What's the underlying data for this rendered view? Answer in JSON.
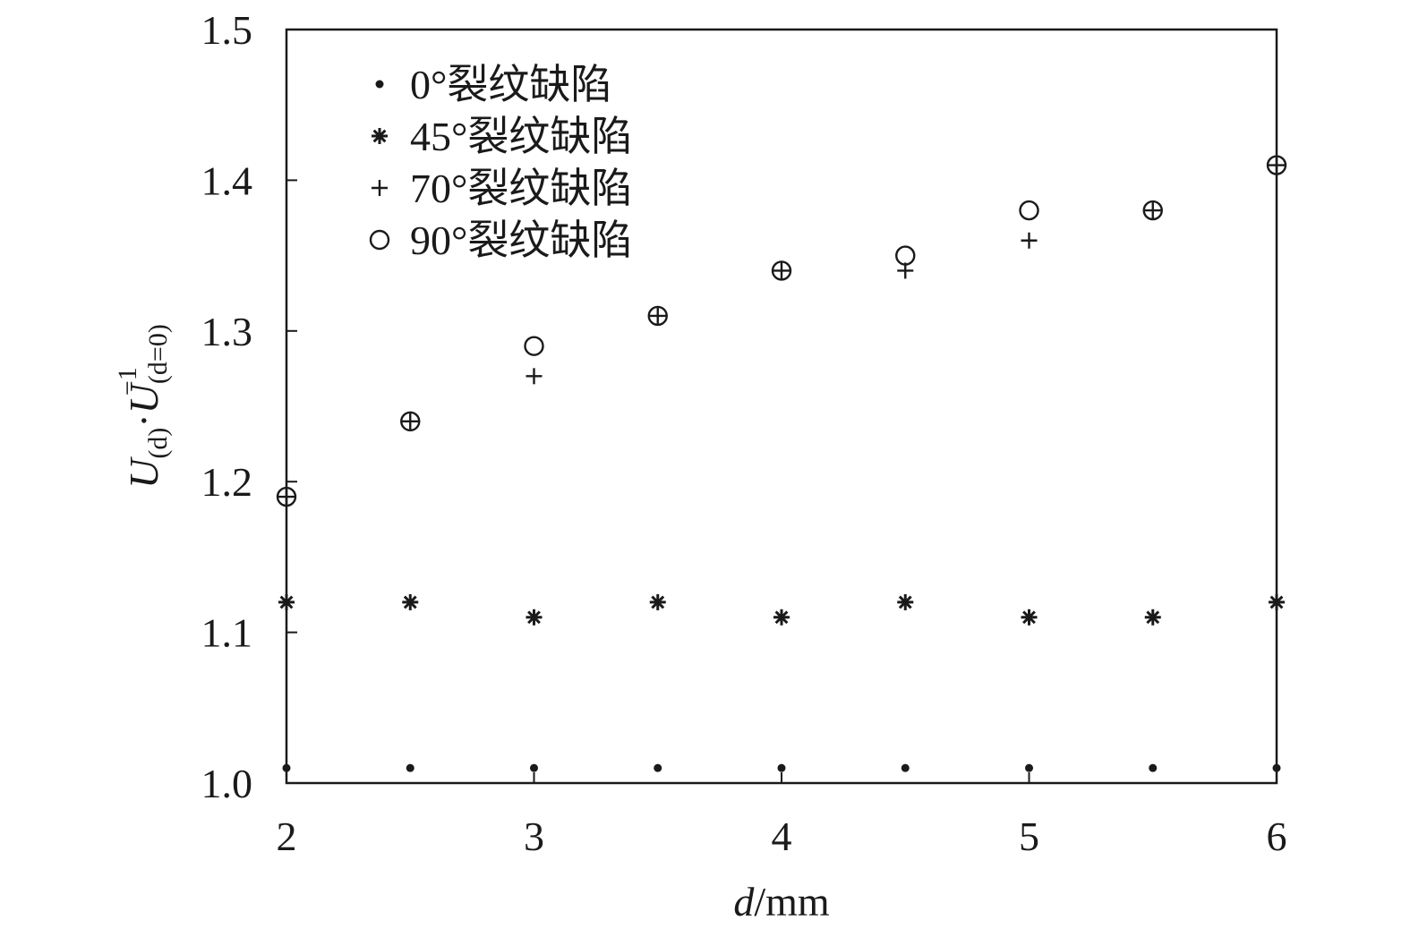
{
  "chart_data": {
    "type": "scatter",
    "xlabel": {
      "var": "d",
      "unit": "/mm"
    },
    "ylabel": {
      "u1": "U",
      "sub1": "(d)",
      "dot": "·",
      "u2": "U",
      "sup2": "−1",
      "sub2": "(d=0)"
    },
    "xlim": [
      2,
      6
    ],
    "ylim": [
      1.0,
      1.5
    ],
    "xticks": [
      "2",
      "3",
      "4",
      "5",
      "6"
    ],
    "yticks": [
      "1.0",
      "1.1",
      "1.2",
      "1.3",
      "1.4",
      "1.5"
    ],
    "legend_position": "top-left",
    "grid": false,
    "x": [
      2,
      2.5,
      3,
      3.5,
      4,
      4.5,
      5,
      5.5,
      6
    ],
    "series": [
      {
        "name": "0°裂纹缺陷",
        "marker": "dot",
        "values": [
          1.01,
          1.01,
          1.01,
          1.01,
          1.01,
          1.01,
          1.01,
          1.01,
          1.01
        ]
      },
      {
        "name": "45°裂纹缺陷",
        "marker": "asterisk",
        "values": [
          1.12,
          1.12,
          1.11,
          1.12,
          1.11,
          1.12,
          1.11,
          1.11,
          1.12
        ]
      },
      {
        "name": "70°裂纹缺陷",
        "marker": "plus",
        "values": [
          1.19,
          1.24,
          1.27,
          1.31,
          1.34,
          1.34,
          1.36,
          1.38,
          1.41
        ]
      },
      {
        "name": "90°裂纹缺陷",
        "marker": "circle",
        "values": [
          1.19,
          1.24,
          1.29,
          1.31,
          1.34,
          1.35,
          1.38,
          1.38,
          1.41
        ]
      }
    ]
  }
}
